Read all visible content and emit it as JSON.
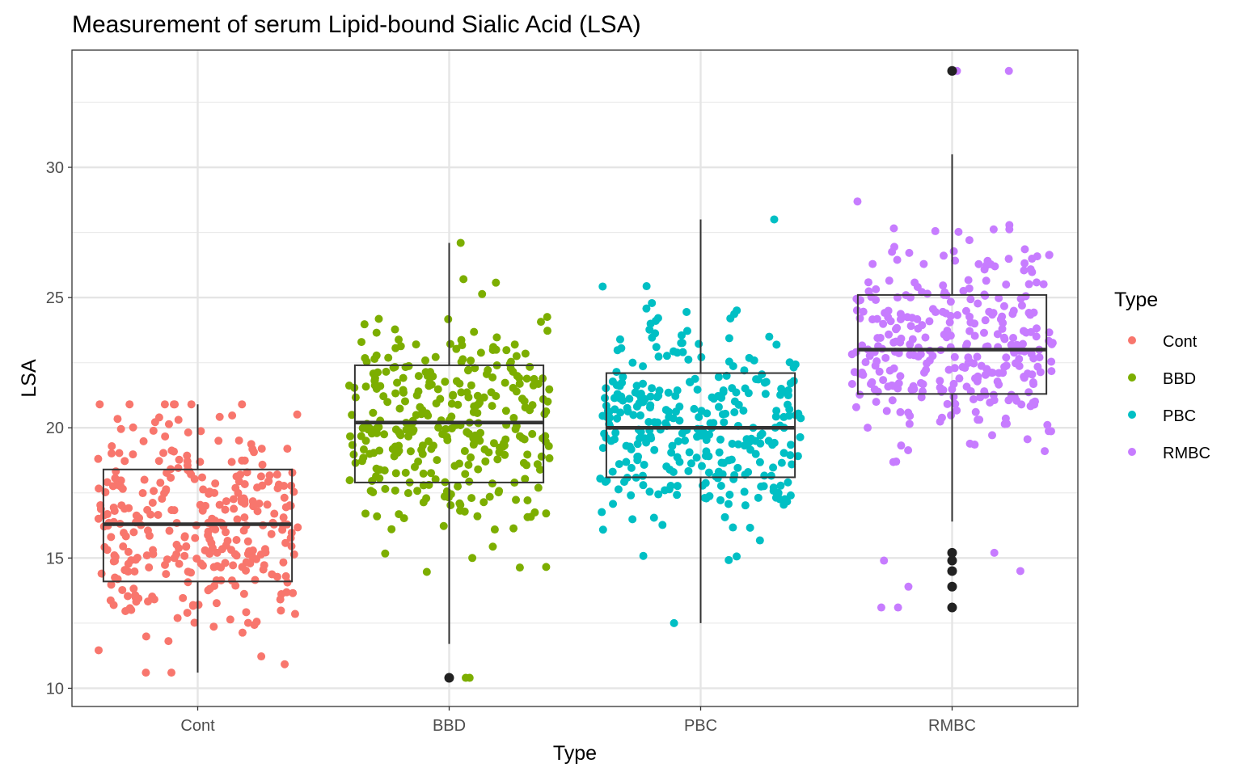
{
  "chart_data": {
    "type": "boxplot",
    "title": "Measurement of serum Lipid-bound Sialic Acid (LSA)",
    "xlabel": "Type",
    "ylabel": "LSA",
    "ylim": [
      9.3,
      34.5
    ],
    "y_ticks": [
      10,
      15,
      20,
      25,
      30
    ],
    "grid": true,
    "legend": {
      "title": "Type",
      "placement": "right",
      "entries": [
        {
          "label": "Cont",
          "color": "#F8766D"
        },
        {
          "label": "BBD",
          "color": "#7CAE00"
        },
        {
          "label": "PBC",
          "color": "#00BFC4"
        },
        {
          "label": "RMBC",
          "color": "#C77CFF"
        }
      ]
    },
    "categories": [
      "Cont",
      "BBD",
      "PBC",
      "RMBC"
    ],
    "boxes": [
      {
        "category": "Cont",
        "color": "#F8766D",
        "lower_whisker": 10.6,
        "q1": 14.1,
        "median": 16.3,
        "q3": 18.4,
        "upper_whisker": 20.9,
        "outliers": [],
        "jitter_count": 320,
        "jitter_min": 10.6,
        "jitter_max": 20.9,
        "jitter_range_max": 20.9
      },
      {
        "category": "BBD",
        "color": "#7CAE00",
        "lower_whisker": 11.7,
        "q1": 17.9,
        "median": 20.2,
        "q3": 22.4,
        "upper_whisker": 27.1,
        "outliers": [
          10.4
        ],
        "jitter_count": 320,
        "jitter_min": 10.4,
        "jitter_max": 27.1
      },
      {
        "category": "PBC",
        "color": "#00BFC4",
        "lower_whisker": 12.5,
        "q1": 18.1,
        "median": 20.0,
        "q3": 22.1,
        "upper_whisker": 28.0,
        "outliers": [],
        "jitter_count": 320,
        "jitter_min": 12.5,
        "jitter_max": 28.0
      },
      {
        "category": "RMBC",
        "color": "#C77CFF",
        "lower_whisker": 16.4,
        "q1": 21.3,
        "median": 23.0,
        "q3": 25.1,
        "upper_whisker": 30.5,
        "outliers": [
          33.7,
          15.2,
          14.9,
          14.5,
          13.9,
          13.1
        ],
        "jitter_count": 320,
        "jitter_min": 13.1,
        "jitter_max": 33.7
      }
    ]
  }
}
